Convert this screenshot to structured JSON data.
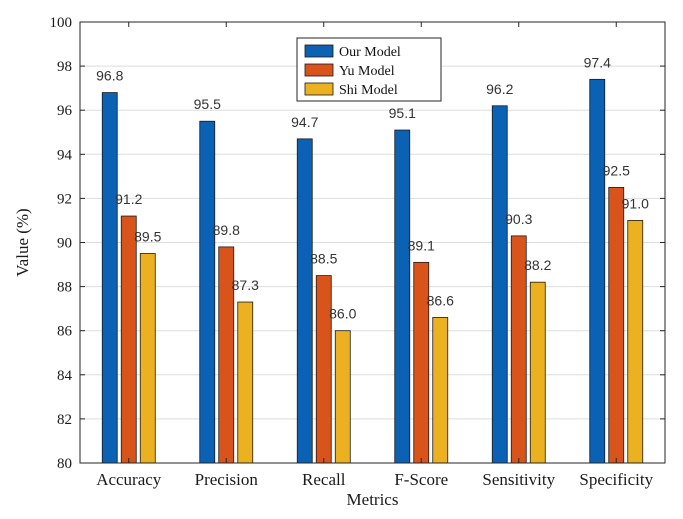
{
  "chart_data": {
    "type": "bar",
    "title": "",
    "xlabel": "Metrics",
    "ylabel": "Value (%)",
    "ylim": [
      80,
      100
    ],
    "yticks": [
      80,
      82,
      84,
      86,
      88,
      90,
      92,
      94,
      96,
      98,
      100
    ],
    "grid": true,
    "legend_position": "top-center",
    "categories": [
      "Accuracy",
      "Precision",
      "Recall",
      "F-Score",
      "Sensitivity",
      "Specificity"
    ],
    "series": [
      {
        "name": "Our Model",
        "color": "#0b62b5",
        "values": [
          96.8,
          95.5,
          94.7,
          95.1,
          96.2,
          97.4
        ],
        "labels": [
          "96.8",
          "95.5",
          "94.7",
          "95.1",
          "96.2",
          "97.4"
        ]
      },
      {
        "name": "Yu Model",
        "color": "#d9541a",
        "values": [
          91.2,
          89.8,
          88.5,
          89.1,
          90.3,
          92.5
        ],
        "labels": [
          "91.2",
          "89.8",
          "88.5",
          "89.1",
          "90.3",
          "92.5"
        ]
      },
      {
        "name": "Shi Model",
        "color": "#ecb121",
        "values": [
          89.5,
          87.3,
          86.0,
          86.6,
          88.2,
          91.0
        ],
        "labels": [
          "89.5",
          "87.3",
          "86.0",
          "86.6",
          "88.2",
          "91.0"
        ]
      }
    ]
  }
}
